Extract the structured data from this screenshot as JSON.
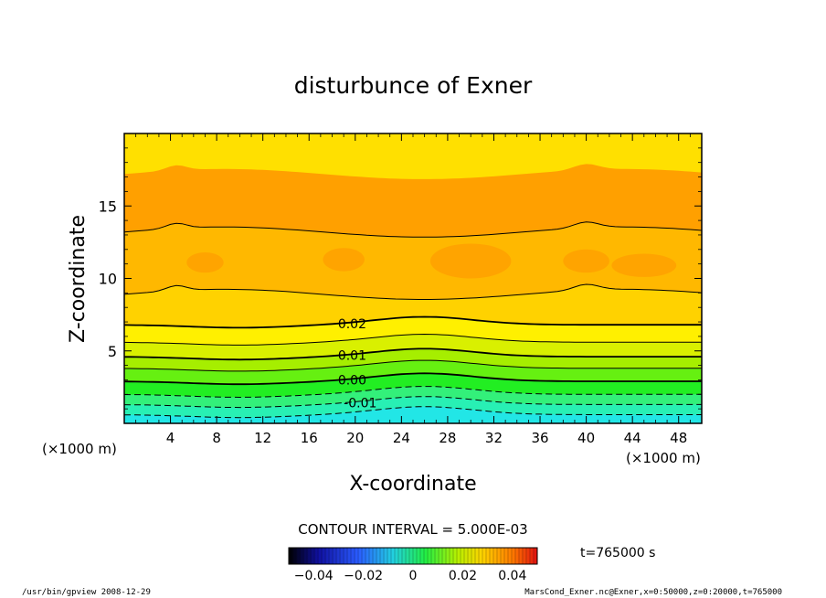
{
  "chart_data": {
    "type": "heatmap",
    "subtype": "filled-contour",
    "title": "disturbunce of Exner",
    "xlabel": "X-coordinate",
    "ylabel": "Z-coordinate",
    "x_unit": "(×1000 m)",
    "y_unit": "(×1000 m)",
    "xlim": [
      0,
      50
    ],
    "ylim": [
      0,
      20
    ],
    "x_ticks": [
      "4",
      "8",
      "12",
      "16",
      "20",
      "24",
      "28",
      "32",
      "36",
      "40",
      "44",
      "48"
    ],
    "y_ticks": [
      "5",
      "10",
      "15"
    ],
    "contour_interval_label": "CONTOUR INTERVAL = 5.000E-03",
    "contour_labels": [
      "0.02",
      "0.01",
      "0.00",
      "-0.01"
    ],
    "colorbar_ticks": [
      "−0.04",
      "−0.02",
      "0",
      "0.02",
      "0.04"
    ],
    "colorbar_range": [
      -0.05,
      0.05
    ],
    "time_label": "t=765000 s",
    "color_bands": [
      {
        "level": -0.015,
        "color": "#22e6e6"
      },
      {
        "level": -0.01,
        "color": "#28f0b4"
      },
      {
        "level": -0.005,
        "color": "#33f07a"
      },
      {
        "level": 0.0,
        "color": "#22ee22"
      },
      {
        "level": 0.005,
        "color": "#66f011"
      },
      {
        "level": 0.01,
        "color": "#a6ee00"
      },
      {
        "level": 0.015,
        "color": "#d9f000"
      },
      {
        "level": 0.02,
        "color": "#fff000"
      },
      {
        "level": 0.025,
        "color": "#ffd200"
      },
      {
        "level": 0.03,
        "color": "#ffb800"
      },
      {
        "level": 0.035,
        "color": "#ffa000"
      }
    ],
    "contour_levels": [
      {
        "level": -0.015,
        "z_km": 0.6,
        "style": "dashed"
      },
      {
        "level": -0.01,
        "z_km": 1.3,
        "style": "dashed"
      },
      {
        "level": -0.005,
        "z_km": 2.0,
        "style": "dashed"
      },
      {
        "level": 0.0,
        "z_km": 2.9,
        "style": "solid"
      },
      {
        "level": 0.005,
        "z_km": 3.8,
        "style": "solid"
      },
      {
        "level": 0.01,
        "z_km": 4.6,
        "style": "solid"
      },
      {
        "level": 0.015,
        "z_km": 5.6,
        "style": "solid"
      },
      {
        "level": 0.02,
        "z_km": 6.8,
        "style": "solid"
      },
      {
        "level": 0.025,
        "z_km": 8.9,
        "style": "solid"
      },
      {
        "level": 0.025,
        "z_km": 13.2,
        "style": "solid"
      }
    ]
  },
  "footer": {
    "left": "/usr/bin/gpview  2008-12-29",
    "right": "MarsCond_Exner.nc@Exner,x=0:50000,z=0:20000,t=765000"
  }
}
